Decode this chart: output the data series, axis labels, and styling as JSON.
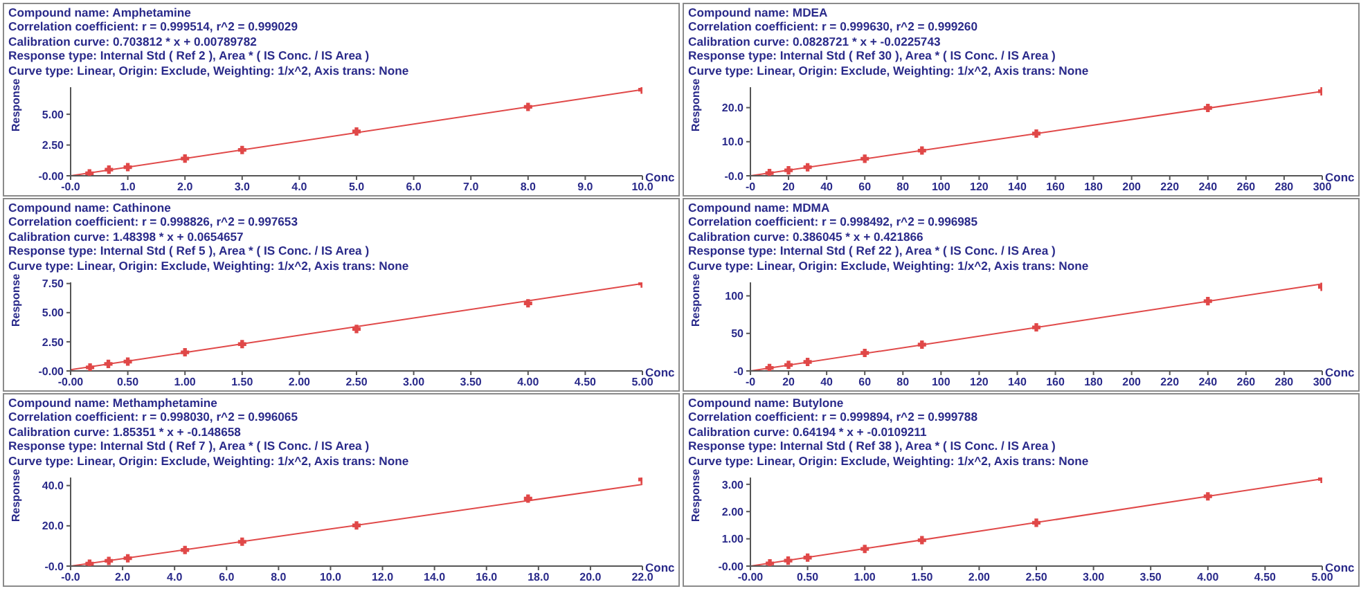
{
  "chart_data": [
    {
      "type": "scatter",
      "title": "Compound name: Amphetamine",
      "annotations": [
        "Correlation coefficient: r = 0.999514, r^2 = 0.999029",
        "Calibration curve: 0.703812 * x + 0.00789782",
        "Response type: Internal Std ( Ref 2 ), Area * ( IS Conc. / IS Area )",
        "Curve type: Linear, Origin: Exclude, Weighting: 1/x^2, Axis trans: None"
      ],
      "xlabel": "Conc",
      "ylabel": "Response",
      "xlim": [
        0,
        10
      ],
      "xticks": [
        {
          "value": 0,
          "label": "-0.0"
        },
        {
          "value": 1,
          "label": "1.0"
        },
        {
          "value": 2,
          "label": "2.0"
        },
        {
          "value": 3,
          "label": "3.0"
        },
        {
          "value": 4,
          "label": "4.0"
        },
        {
          "value": 5,
          "label": "5.0"
        },
        {
          "value": 6,
          "label": "6.0"
        },
        {
          "value": 7,
          "label": "7.0"
        },
        {
          "value": 8,
          "label": "8.0"
        },
        {
          "value": 9,
          "label": "9.0"
        },
        {
          "value": 10,
          "label": "10.0"
        }
      ],
      "ylim": [
        0,
        7.2
      ],
      "yticks": [
        {
          "value": 0,
          "label": "-0.00"
        },
        {
          "value": 2.5,
          "label": "2.50"
        },
        {
          "value": 5,
          "label": "5.00"
        }
      ],
      "grid": false,
      "series": [
        {
          "marker": "cross",
          "color": "#e04848",
          "x": [
            0.33,
            0.67,
            1,
            2,
            3,
            5,
            8,
            10
          ],
          "values": [
            0.2,
            0.5,
            0.7,
            1.4,
            2.1,
            3.6,
            5.6,
            7.0
          ]
        },
        {
          "type": "line",
          "color": "#e04848",
          "x": [
            0,
            10
          ],
          "values": [
            0,
            7.0
          ]
        }
      ]
    },
    {
      "type": "scatter",
      "title": "Compound name: MDEA",
      "annotations": [
        "Correlation coefficient: r = 0.999630, r^2 = 0.999260",
        "Calibration curve: 0.0828721 * x + -0.0225743",
        "Response type: Internal Std ( Ref 30 ), Area * ( IS Conc. / IS Area )",
        "Curve type: Linear, Origin: Exclude, Weighting: 1/x^2, Axis trans: None"
      ],
      "xlabel": "Conc",
      "ylabel": "Response",
      "xlim": [
        0,
        300
      ],
      "xticks": [
        {
          "value": 0,
          "label": "-0"
        },
        20,
        40,
        60,
        80,
        100,
        120,
        140,
        160,
        180,
        200,
        220,
        240,
        260,
        280,
        300
      ],
      "ylim": [
        0,
        26
      ],
      "yticks": [
        {
          "value": 0,
          "label": "-0.0"
        },
        {
          "value": 10,
          "label": "10.0"
        },
        {
          "value": 20,
          "label": "20.0"
        }
      ],
      "grid": false,
      "series": [
        {
          "marker": "cross",
          "color": "#e04848",
          "x": [
            10,
            20,
            30,
            60,
            90,
            150,
            240,
            300
          ],
          "values": [
            0.8,
            1.6,
            2.5,
            5,
            7.4,
            12.4,
            19.9,
            24.8
          ]
        },
        {
          "type": "line",
          "color": "#e04848",
          "x": [
            0,
            300
          ],
          "values": [
            0,
            24.8
          ]
        }
      ]
    },
    {
      "type": "scatter",
      "title": "Compound name: Cathinone",
      "annotations": [
        "Correlation coefficient: r = 0.998826, r^2 = 0.997653",
        "Calibration curve: 1.48398 * x + 0.0654657",
        "Response type: Internal Std ( Ref 5 ), Area * ( IS Conc. / IS Area )",
        "Curve type: Linear, Origin: Exclude, Weighting: 1/x^2, Axis trans: None"
      ],
      "xlabel": "Conc",
      "ylabel": "Response",
      "xlim": [
        0,
        5
      ],
      "xticks": [
        {
          "value": 0,
          "label": "-0.00"
        },
        {
          "value": 0.5,
          "label": "0.50"
        },
        {
          "value": 1,
          "label": "1.00"
        },
        {
          "value": 1.5,
          "label": "1.50"
        },
        {
          "value": 2,
          "label": "2.00"
        },
        {
          "value": 2.5,
          "label": "2.50"
        },
        {
          "value": 3,
          "label": "3.00"
        },
        {
          "value": 3.5,
          "label": "3.50"
        },
        {
          "value": 4,
          "label": "4.00"
        },
        {
          "value": 4.5,
          "label": "4.50"
        },
        {
          "value": 5,
          "label": "5.00"
        }
      ],
      "ylim": [
        0,
        7.6
      ],
      "yticks": [
        {
          "value": 0,
          "label": "-0.00"
        },
        {
          "value": 2.5,
          "label": "2.50"
        },
        {
          "value": 5,
          "label": "5.00"
        },
        {
          "value": 7.5,
          "label": "7.50"
        }
      ],
      "grid": false,
      "series": [
        {
          "marker": "cross",
          "color": "#e04848",
          "x": [
            0.17,
            0.33,
            0.5,
            1,
            1.5,
            2.5,
            4,
            5
          ],
          "values": [
            0.3,
            0.6,
            0.8,
            1.6,
            2.3,
            3.6,
            5.8,
            7.5
          ]
        },
        {
          "type": "line",
          "color": "#e04848",
          "x": [
            0,
            5
          ],
          "values": [
            0.1,
            7.5
          ]
        }
      ]
    },
    {
      "type": "scatter",
      "title": "Compound name: MDMA",
      "annotations": [
        "Correlation coefficient: r = 0.998492, r^2 = 0.996985",
        "Calibration curve: 0.386045 * x + 0.421866",
        "Response type: Internal Std ( Ref 22 ), Area * ( IS Conc. / IS Area )",
        "Curve type: Linear, Origin: Exclude, Weighting: 1/x^2, Axis trans: None"
      ],
      "xlabel": "Conc",
      "ylabel": "Response",
      "xlim": [
        0,
        300
      ],
      "xticks": [
        {
          "value": 0,
          "label": "-0"
        },
        20,
        40,
        60,
        80,
        100,
        120,
        140,
        160,
        180,
        200,
        220,
        240,
        260,
        280,
        300
      ],
      "ylim": [
        0,
        118
      ],
      "yticks": [
        {
          "value": 0,
          "label": "-0"
        },
        50,
        100
      ],
      "grid": false,
      "series": [
        {
          "marker": "cross",
          "color": "#e04848",
          "x": [
            10,
            20,
            30,
            60,
            90,
            150,
            240,
            300
          ],
          "values": [
            4,
            8,
            12,
            24,
            35,
            58,
            93,
            112
          ]
        },
        {
          "type": "line",
          "color": "#e04848",
          "x": [
            0,
            300
          ],
          "values": [
            0,
            116
          ]
        }
      ]
    },
    {
      "type": "scatter",
      "title": "Compound name: Methamphetamine",
      "annotations": [
        "Correlation coefficient: r = 0.998030, r^2 = 0.996065",
        "Calibration curve: 1.85351 * x + -0.148658",
        "Response type: Internal Std ( Ref 7 ), Area * ( IS Conc. / IS Area )",
        "Curve type: Linear, Origin: Exclude, Weighting: 1/x^2, Axis trans: None"
      ],
      "xlabel": "Conc",
      "ylabel": "Response",
      "xlim": [
        0,
        22
      ],
      "xticks": [
        {
          "value": 0,
          "label": "-0.0"
        },
        {
          "value": 2,
          "label": "2.0"
        },
        {
          "value": 4,
          "label": "4.0"
        },
        {
          "value": 6,
          "label": "6.0"
        },
        {
          "value": 8,
          "label": "8.0"
        },
        {
          "value": 10,
          "label": "10.0"
        },
        {
          "value": 12,
          "label": "12.0"
        },
        {
          "value": 14,
          "label": "14.0"
        },
        {
          "value": 16,
          "label": "16.0"
        },
        {
          "value": 18,
          "label": "18.0"
        },
        {
          "value": 20,
          "label": "20.0"
        },
        {
          "value": 22,
          "label": "22.0"
        }
      ],
      "ylim": [
        0,
        44
      ],
      "yticks": [
        {
          "value": 0,
          "label": "-0.0"
        },
        {
          "value": 20,
          "label": "20.0"
        },
        {
          "value": 40,
          "label": "40.0"
        }
      ],
      "grid": false,
      "series": [
        {
          "marker": "cross",
          "color": "#e04848",
          "x": [
            0.73,
            1.47,
            2.2,
            4.4,
            6.6,
            11,
            17.6,
            22
          ],
          "values": [
            1.2,
            2.6,
            3.9,
            8,
            12.1,
            20.2,
            33.5,
            43
          ]
        },
        {
          "type": "line",
          "color": "#e04848",
          "x": [
            0,
            22
          ],
          "values": [
            0,
            40.6
          ]
        }
      ]
    },
    {
      "type": "scatter",
      "title": "Compound name: Butylone",
      "annotations": [
        "Correlation coefficient: r = 0.999894, r^2 = 0.999788",
        "Calibration curve: 0.64194 * x + -0.0109211",
        "Response type: Internal Std ( Ref 38 ), Area * ( IS Conc. / IS Area )",
        "Curve type: Linear, Origin: Exclude, Weighting: 1/x^2, Axis trans: None"
      ],
      "xlabel": "Conc",
      "ylabel": "Response",
      "xlim": [
        0,
        5
      ],
      "xticks": [
        {
          "value": 0,
          "label": "-0.00"
        },
        {
          "value": 0.5,
          "label": "0.50"
        },
        {
          "value": 1,
          "label": "1.00"
        },
        {
          "value": 1.5,
          "label": "1.50"
        },
        {
          "value": 2,
          "label": "2.00"
        },
        {
          "value": 2.5,
          "label": "2.50"
        },
        {
          "value": 3,
          "label": "3.00"
        },
        {
          "value": 3.5,
          "label": "3.50"
        },
        {
          "value": 4,
          "label": "4.00"
        },
        {
          "value": 4.5,
          "label": "4.50"
        },
        {
          "value": 5,
          "label": "5.00"
        }
      ],
      "ylim": [
        0,
        3.25
      ],
      "yticks": [
        {
          "value": 0,
          "label": "-0.00"
        },
        {
          "value": 1,
          "label": "1.00"
        },
        {
          "value": 2,
          "label": "2.00"
        },
        {
          "value": 3,
          "label": "3.00"
        }
      ],
      "grid": false,
      "series": [
        {
          "marker": "cross",
          "color": "#e04848",
          "x": [
            0.17,
            0.33,
            0.5,
            1,
            1.5,
            2.5,
            4,
            5
          ],
          "values": [
            0.1,
            0.2,
            0.31,
            0.63,
            0.95,
            1.59,
            2.56,
            3.2
          ]
        },
        {
          "type": "line",
          "color": "#e04848",
          "x": [
            0,
            5
          ],
          "values": [
            0,
            3.2
          ]
        }
      ]
    }
  ]
}
